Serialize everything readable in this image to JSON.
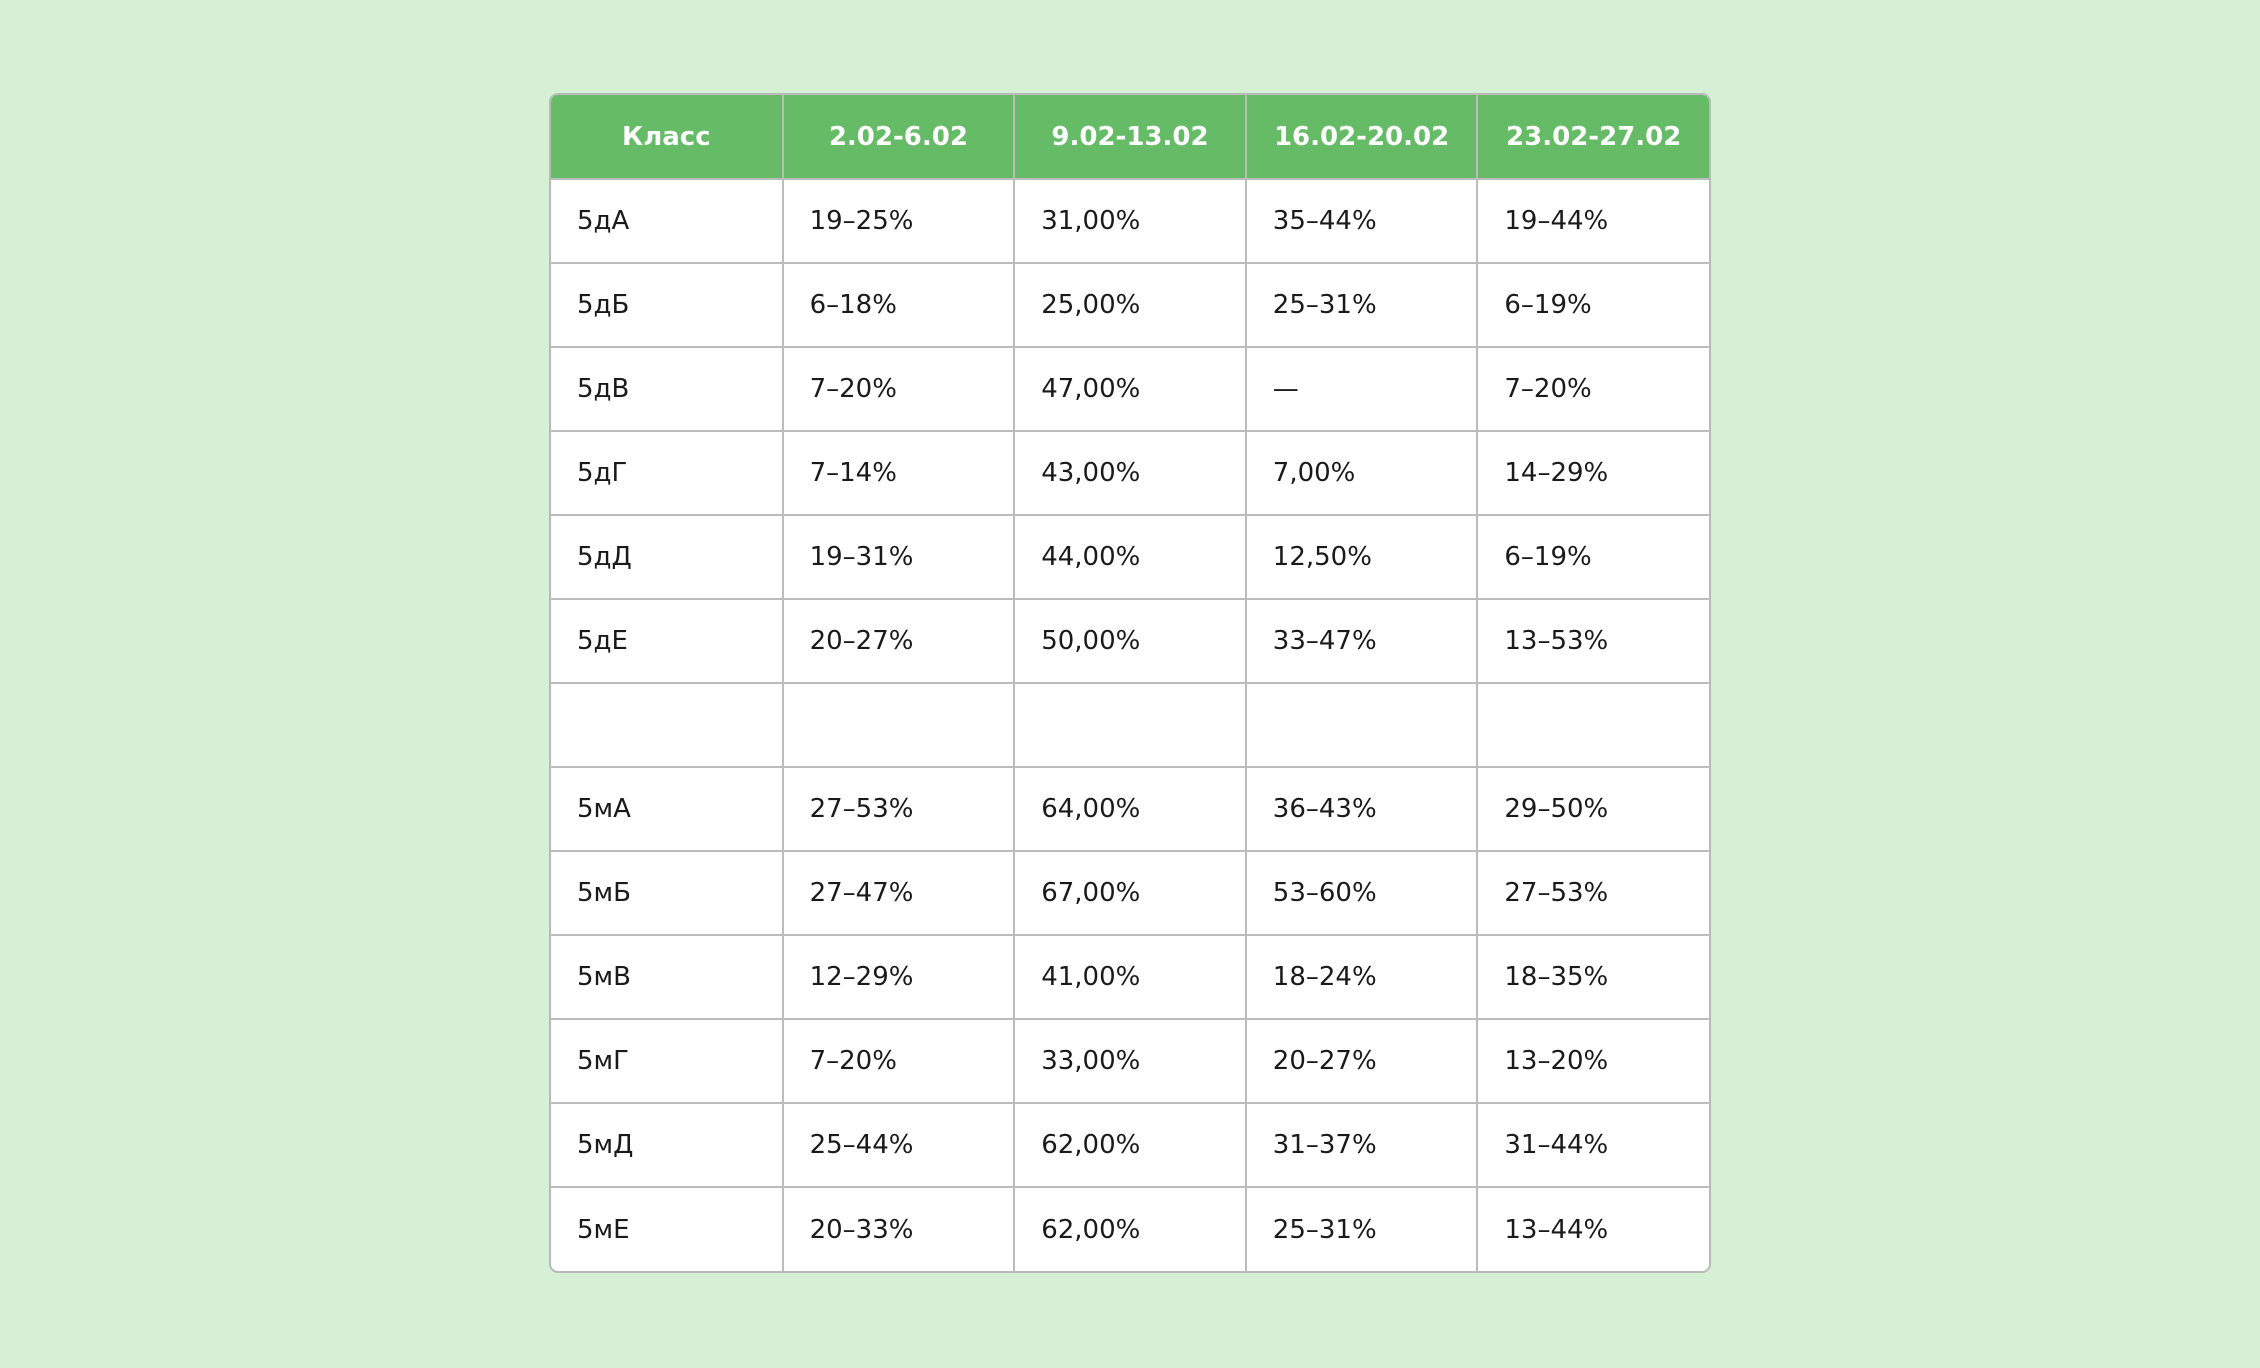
{
  "table": {
    "header": [
      "Класс",
      "2.02-6.02",
      "9.02-13.02",
      "16.02-20.02",
      "23.02-27.02"
    ],
    "rows": [
      [
        "5дА",
        "19–25%",
        "31,00%",
        "35–44%",
        "19–44%"
      ],
      [
        "5дБ",
        "6–18%",
        "25,00%",
        "25–31%",
        "6–19%"
      ],
      [
        "5дВ",
        "7–20%",
        "47,00%",
        "—",
        "7–20%"
      ],
      [
        "5дГ",
        "7–14%",
        "43,00%",
        "7,00%",
        "14–29%"
      ],
      [
        "5дД",
        "19–31%",
        "44,00%",
        "12,50%",
        "6–19%"
      ],
      [
        "5дЕ",
        "20–27%",
        "50,00%",
        "33–47%",
        "13–53%"
      ],
      [
        null,
        null,
        null,
        null,
        null
      ],
      [
        "5мА",
        "27–53%",
        "64,00%",
        "36–43%",
        "29–50%"
      ],
      [
        "5мБ",
        "27–47%",
        "67,00%",
        "53–60%",
        "27–53%"
      ],
      [
        "5мВ",
        "12–29%",
        "41,00%",
        "18–24%",
        "18–35%"
      ],
      [
        "5мГ",
        "7–20%",
        "33,00%",
        "20–27%",
        "13–20%"
      ],
      [
        "5мД",
        "25–44%",
        "62,00%",
        "31–37%",
        "31–44%"
      ],
      [
        "5мЕ",
        "20–33%",
        "62,00%",
        "25–31%",
        "13–44%"
      ]
    ]
  }
}
